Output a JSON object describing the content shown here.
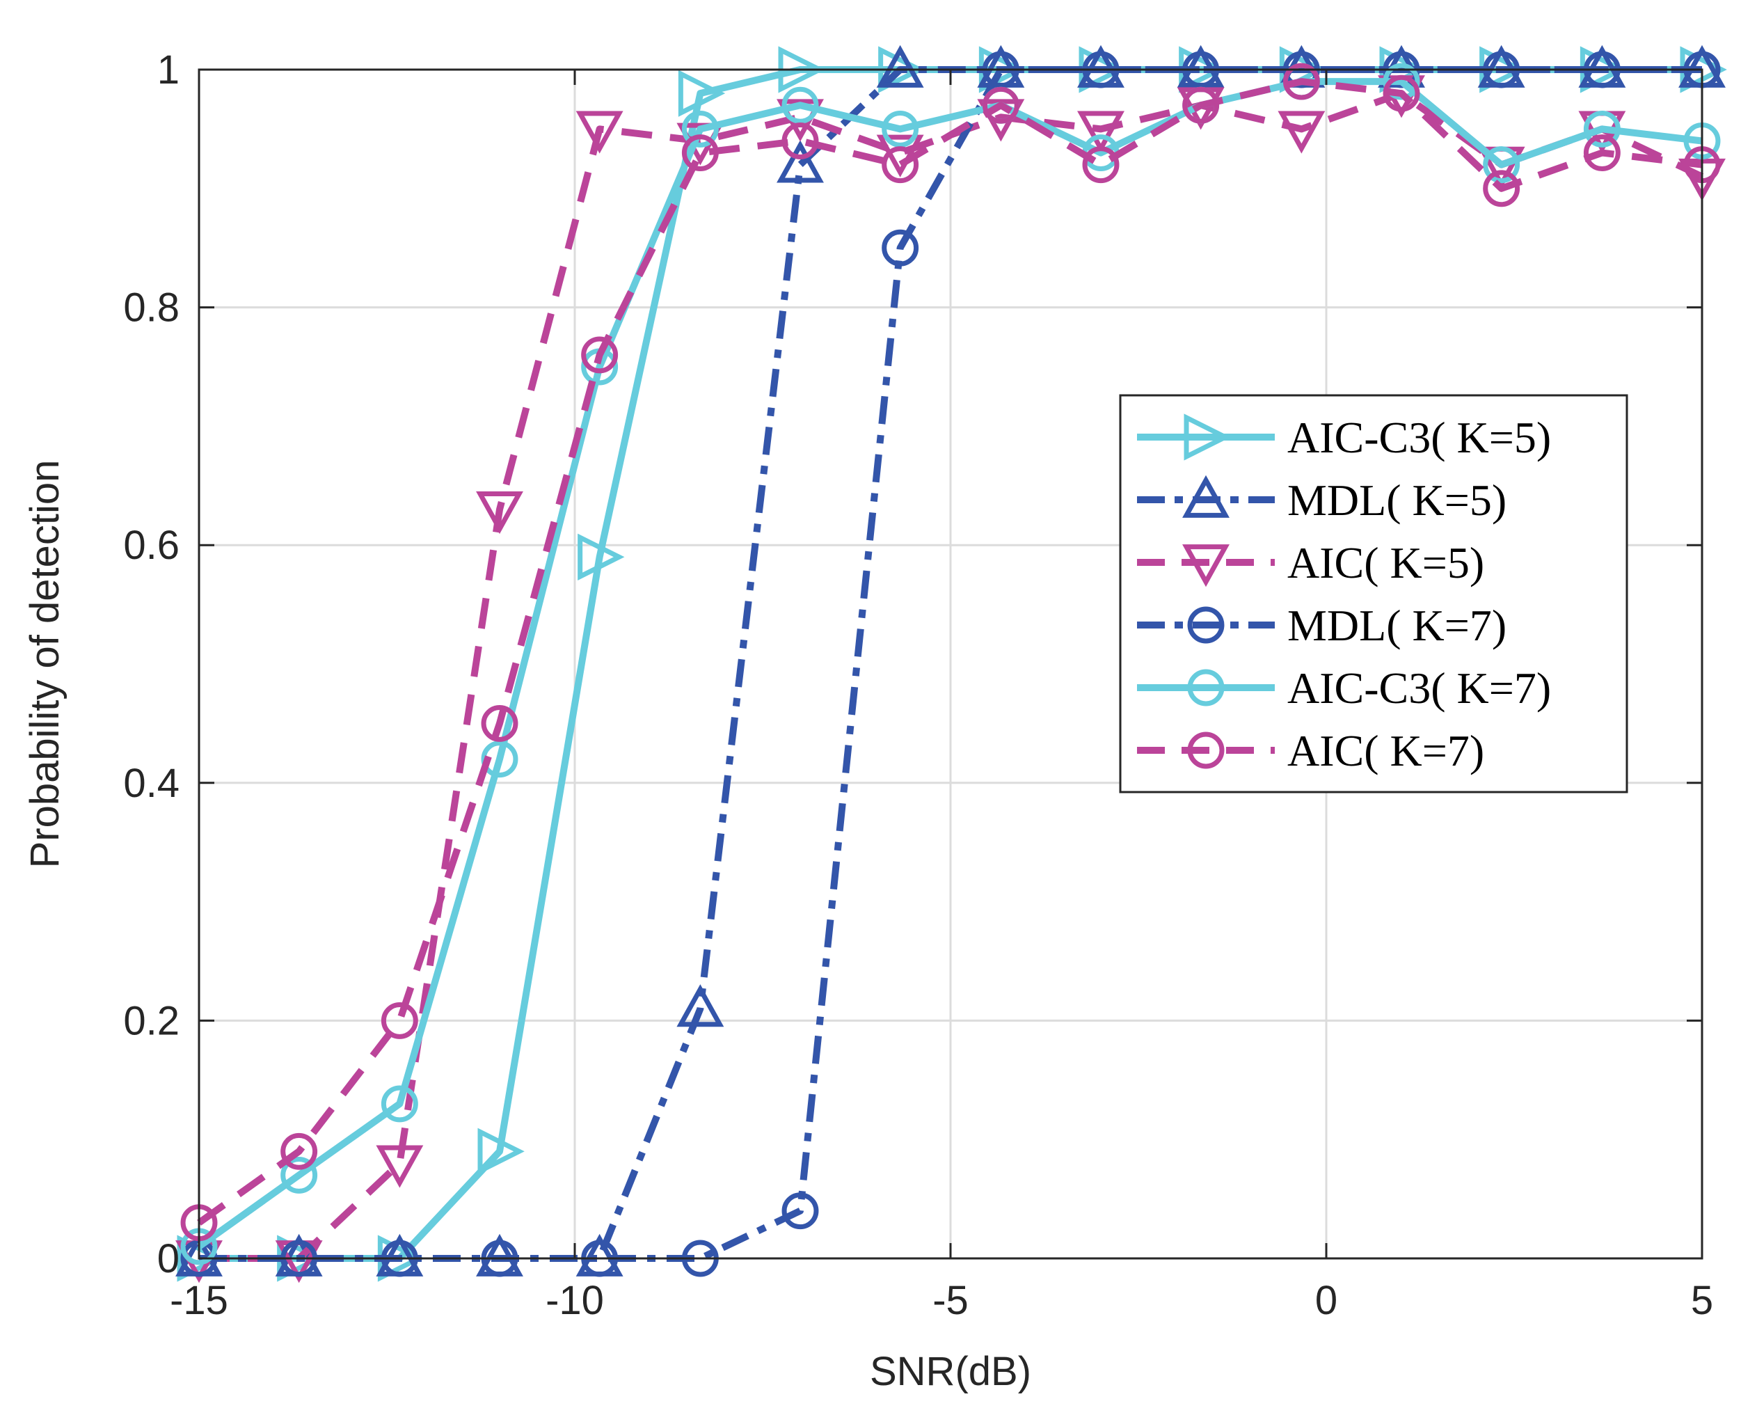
{
  "chart_data": {
    "type": "line",
    "title": "",
    "xlabel": "SNR(dB)",
    "ylabel": "Probability of detection",
    "xlim": [
      -15,
      5
    ],
    "ylim": [
      0,
      1
    ],
    "xticks": [
      -15,
      -10,
      -5,
      0,
      5
    ],
    "xtick_labels": [
      "-15",
      "-10",
      "-5",
      "0",
      "5"
    ],
    "yticks": [
      0,
      0.2,
      0.4,
      0.6,
      0.8,
      1
    ],
    "ytick_labels": [
      "0",
      "0.2",
      "0.4",
      "0.6",
      "0.8",
      "1"
    ],
    "grid": true,
    "legend_position": "right",
    "x": [
      -15,
      -13.67,
      -12.33,
      -11,
      -9.67,
      -8.33,
      -7,
      -5.67,
      -4.33,
      -3,
      -1.67,
      -0.33,
      1,
      2.33,
      3.67,
      5
    ],
    "series": [
      {
        "name": "AIC-C3( K=5)",
        "color": "#66CCDD",
        "line_style": "solid",
        "marker": "triangle-right",
        "values": [
          0,
          0,
          0,
          0.09,
          0.59,
          0.98,
          1.0,
          1.0,
          1.0,
          1.0,
          1.0,
          1.0,
          1.0,
          1.0,
          1.0,
          1.0
        ]
      },
      {
        "name": "MDL( K=5)",
        "color": "#3355AA",
        "line_style": "dashdot",
        "marker": "triangle-up",
        "values": [
          0,
          0,
          0,
          0,
          0,
          0.21,
          0.92,
          1.0,
          1.0,
          1.0,
          1.0,
          1.0,
          1.0,
          1.0,
          1.0,
          1.0
        ]
      },
      {
        "name": "AIC( K=5)",
        "color": "#BB4499",
        "line_style": "dashed",
        "marker": "triangle-down",
        "values": [
          0,
          0,
          0.08,
          0.63,
          0.95,
          0.94,
          0.96,
          0.93,
          0.96,
          0.95,
          0.97,
          0.95,
          0.98,
          0.92,
          0.95,
          0.91
        ]
      },
      {
        "name": "MDL( K=7)",
        "color": "#3355AA",
        "line_style": "dashdot",
        "marker": "circle",
        "values": [
          0,
          0,
          0,
          0,
          0,
          0,
          0.04,
          0.85,
          1.0,
          1.0,
          1.0,
          1.0,
          1.0,
          1.0,
          1.0,
          1.0
        ]
      },
      {
        "name": "AIC-C3( K=7)",
        "color": "#66CCDD",
        "line_style": "solid",
        "marker": "circle",
        "values": [
          0.01,
          0.07,
          0.13,
          0.42,
          0.75,
          0.95,
          0.97,
          0.95,
          0.97,
          0.93,
          0.97,
          0.99,
          0.99,
          0.92,
          0.95,
          0.94
        ]
      },
      {
        "name": "AIC( K=7)",
        "color": "#BB4499",
        "line_style": "dashed",
        "marker": "circle",
        "values": [
          0.03,
          0.09,
          0.2,
          0.45,
          0.76,
          0.93,
          0.94,
          0.92,
          0.97,
          0.92,
          0.97,
          0.99,
          0.98,
          0.9,
          0.93,
          0.92
        ]
      }
    ]
  }
}
